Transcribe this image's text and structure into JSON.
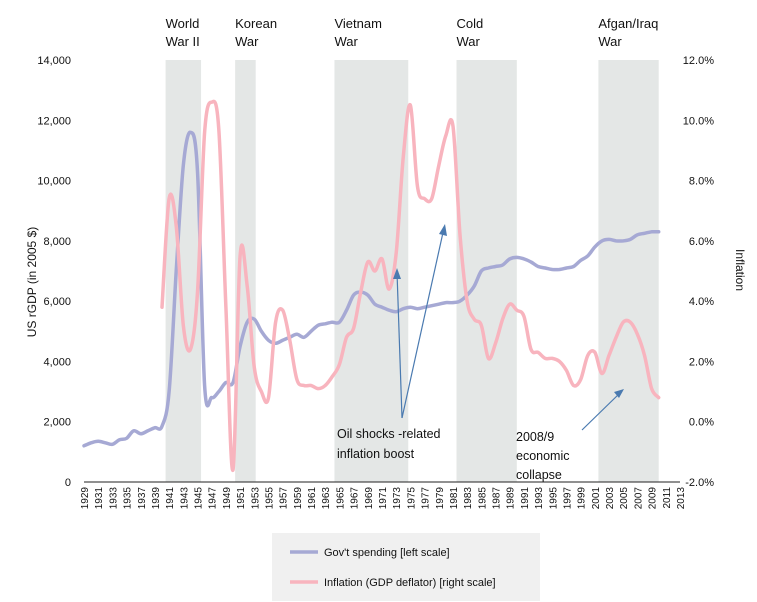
{
  "chart_data": {
    "type": "line",
    "ylabel_left": "US rGDP (in 2005 $)",
    "ylabel_right": "Inflation",
    "y_left_ticks": [
      "0",
      "2,000",
      "4,000",
      "6,000",
      "8,000",
      "10,000",
      "12,000",
      "14,000"
    ],
    "y_right_ticks": [
      "-2.0%",
      "0.0%",
      "2.0%",
      "4.0%",
      "6.0%",
      "8.0%",
      "10.0%",
      "12.0%"
    ],
    "ylim_left": [
      0,
      14000
    ],
    "ylim_right": [
      -2.0,
      12.0
    ],
    "xlim": [
      1929,
      2013
    ],
    "x_ticks": [
      "1929",
      "1931",
      "1933",
      "1935",
      "1937",
      "1939",
      "1941",
      "1943",
      "1945",
      "1947",
      "1949",
      "1951",
      "1953",
      "1955",
      "1957",
      "1959",
      "1961",
      "1963",
      "1965",
      "1967",
      "1969",
      "1971",
      "1973",
      "1975",
      "1977",
      "1979",
      "1981",
      "1983",
      "1985",
      "1987",
      "1989",
      "1991",
      "1993",
      "1995",
      "1997",
      "1999",
      "2001",
      "2003",
      "2005",
      "2007",
      "2009",
      "2011",
      "2013"
    ],
    "wars": [
      {
        "label_line1": "World",
        "label_line2": "War II",
        "start": 1940.5,
        "end": 1945.5
      },
      {
        "label_line1": "Korean",
        "label_line2": "War",
        "start": 1950.3,
        "end": 1953.2
      },
      {
        "label_line1": "Vietnam",
        "label_line2": "War",
        "start": 1964.3,
        "end": 1974.7
      },
      {
        "label_line1": "Cold",
        "label_line2": "War",
        "start": 1981.5,
        "end": 1990.0
      },
      {
        "label_line1": "Afgan/Iraq",
        "label_line2": "War",
        "start": 2001.5,
        "end": 2010.0
      }
    ],
    "series": [
      {
        "name": "Gov't spending [left scale]",
        "color": "#a6a9d4",
        "axis": "left",
        "x": [
          1929,
          1930,
          1931,
          1932,
          1933,
          1934,
          1935,
          1936,
          1937,
          1938,
          1939,
          1940,
          1941,
          1942,
          1943,
          1944,
          1945,
          1946,
          1947,
          1948,
          1949,
          1950,
          1951,
          1952,
          1953,
          1954,
          1955,
          1956,
          1957,
          1958,
          1959,
          1960,
          1961,
          1962,
          1963,
          1964,
          1965,
          1966,
          1967,
          1968,
          1969,
          1970,
          1971,
          1972,
          1973,
          1974,
          1975,
          1976,
          1977,
          1978,
          1979,
          1980,
          1981,
          1982,
          1983,
          1984,
          1985,
          1986,
          1987,
          1988,
          1989,
          1990,
          1991,
          1992,
          1993,
          1994,
          1995,
          1996,
          1997,
          1998,
          1999,
          2000,
          2001,
          2002,
          2003,
          2004,
          2005,
          2006,
          2007,
          2008,
          2009,
          2010
        ],
        "values": [
          1200,
          1300,
          1350,
          1300,
          1250,
          1400,
          1450,
          1700,
          1600,
          1700,
          1800,
          1850,
          3000,
          7000,
          10500,
          11600,
          10300,
          3200,
          2800,
          3000,
          3300,
          3300,
          4500,
          5300,
          5400,
          5000,
          4700,
          4600,
          4700,
          4800,
          4900,
          4800,
          5000,
          5200,
          5250,
          5300,
          5300,
          5700,
          6200,
          6300,
          6200,
          5900,
          5800,
          5700,
          5650,
          5750,
          5800,
          5750,
          5800,
          5850,
          5900,
          5950,
          5950,
          6000,
          6200,
          6500,
          7000,
          7100,
          7150,
          7200,
          7400,
          7450,
          7400,
          7300,
          7150,
          7100,
          7050,
          7050,
          7100,
          7150,
          7350,
          7500,
          7800,
          8000,
          8050,
          8000,
          8000,
          8050,
          8200,
          8250,
          8300,
          8300
        ]
      },
      {
        "name": "Inflation (GDP deflator) [right scale]",
        "color": "#f8b4be",
        "axis": "right",
        "x": [
          1940,
          1941,
          1942,
          1943,
          1944,
          1945,
          1946,
          1947,
          1948,
          1949,
          1950,
          1951,
          1952,
          1953,
          1954,
          1955,
          1956,
          1957,
          1958,
          1959,
          1960,
          1961,
          1962,
          1963,
          1964,
          1965,
          1966,
          1967,
          1968,
          1969,
          1970,
          1971,
          1972,
          1973,
          1974,
          1975,
          1976,
          1977,
          1978,
          1979,
          1980,
          1981,
          1982,
          1983,
          1984,
          1985,
          1986,
          1987,
          1988,
          1989,
          1990,
          1991,
          1992,
          1993,
          1994,
          1995,
          1996,
          1997,
          1998,
          1999,
          2000,
          2001,
          2002,
          2003,
          2004,
          2005,
          2006,
          2007,
          2008,
          2009,
          2010
        ],
        "values": [
          3.8,
          7.4,
          6.5,
          3.2,
          2.4,
          4.3,
          9.6,
          10.6,
          9.7,
          3.8,
          -1.6,
          5.5,
          4.5,
          1.8,
          1.0,
          0.8,
          3.3,
          3.7,
          2.7,
          1.4,
          1.2,
          1.2,
          1.1,
          1.2,
          1.5,
          1.9,
          2.8,
          3.1,
          4.3,
          5.3,
          5.0,
          5.4,
          4.4,
          5.6,
          8.8,
          10.5,
          7.8,
          7.4,
          7.4,
          8.5,
          9.5,
          9.8,
          6.2,
          4.0,
          3.4,
          3.2,
          2.1,
          2.6,
          3.4,
          3.9,
          3.7,
          3.5,
          2.4,
          2.3,
          2.1,
          2.1,
          2.0,
          1.7,
          1.2,
          1.4,
          2.2,
          2.3,
          1.6,
          2.2,
          2.8,
          3.3,
          3.3,
          2.9,
          2.2,
          1.1,
          0.8
        ]
      }
    ],
    "annotations": [
      {
        "line1": "Oil shocks -related",
        "line2": "inflation boost"
      },
      {
        "line1": "2008/9",
        "line2": "economic",
        "line3": "collapse"
      }
    ],
    "legend_placement": "bottom-center"
  }
}
